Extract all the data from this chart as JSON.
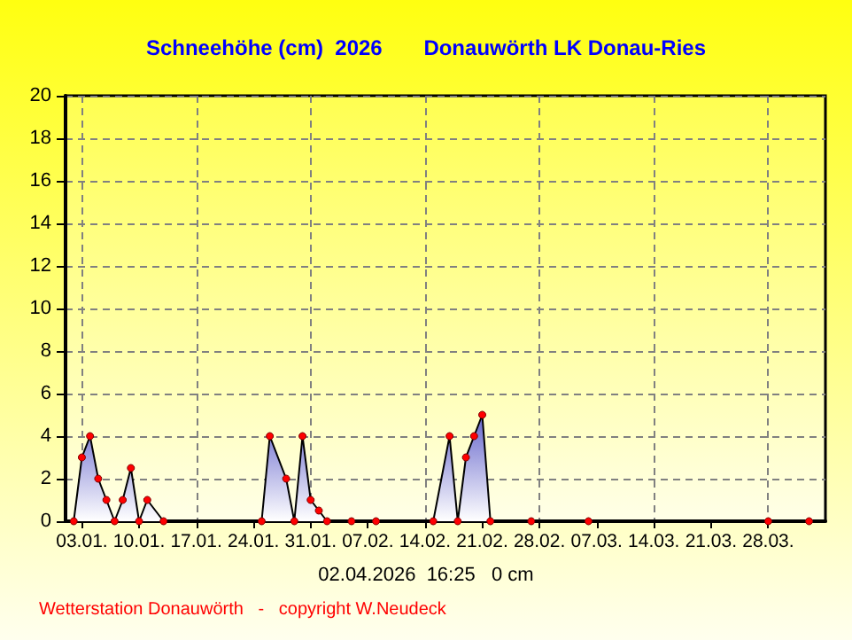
{
  "chart_data": {
    "type": "area",
    "title": "Schneehöhe (cm)  2026       Donauwörth LK Donau-Ries",
    "x": [
      "2026-01-02",
      "2026-01-03",
      "2026-01-04",
      "2026-01-05",
      "2026-01-06",
      "2026-01-07",
      "2026-01-08",
      "2026-01-09",
      "2026-01-10",
      "2026-01-11",
      "2026-01-13",
      "2026-01-25",
      "2026-01-26",
      "2026-01-28",
      "2026-01-29",
      "2026-01-30",
      "2026-01-31",
      "2026-02-01",
      "2026-02-02",
      "2026-02-05",
      "2026-02-08",
      "2026-02-15",
      "2026-02-17",
      "2026-02-18",
      "2026-02-19",
      "2026-02-20",
      "2026-02-21",
      "2026-02-22",
      "2026-02-27",
      "2026-03-06",
      "2026-03-28",
      "2026-04-02"
    ],
    "series": [
      {
        "color": "#6666cc",
        "values": [
          0,
          3,
          4,
          2,
          1,
          0,
          1,
          2.5,
          0,
          1,
          0,
          0,
          4,
          2,
          0,
          4,
          1,
          0.5,
          0,
          0,
          0,
          0,
          4,
          0,
          3,
          4,
          5,
          0,
          0,
          0,
          0,
          0
        ]
      }
    ],
    "xlim": [
      "2026-01-01",
      "2026-04-04"
    ],
    "xticks": [
      {
        "value": "2026-01-03",
        "label": "03.01."
      },
      {
        "value": "2026-01-10",
        "label": "10.01."
      },
      {
        "value": "2026-01-17",
        "label": "17.01."
      },
      {
        "value": "2026-01-24",
        "label": "24.01."
      },
      {
        "value": "2026-01-31",
        "label": "31.01."
      },
      {
        "value": "2026-02-07",
        "label": "07.02."
      },
      {
        "value": "2026-02-14",
        "label": "14.02."
      },
      {
        "value": "2026-02-21",
        "label": "21.02."
      },
      {
        "value": "2026-02-28",
        "label": "28.02."
      },
      {
        "value": "2026-03-07",
        "label": "07.03."
      },
      {
        "value": "2026-03-14",
        "label": "14.03."
      },
      {
        "value": "2026-03-21",
        "label": "21.03."
      },
      {
        "value": "2026-03-28",
        "label": "28.03."
      }
    ],
    "ylim": [
      0,
      20
    ],
    "yticks": [
      0,
      2,
      4,
      6,
      8,
      10,
      12,
      14,
      16,
      18,
      20
    ],
    "grid": true,
    "marker": "circle",
    "annotations": [
      "02.04.2026  16:25   0 cm",
      "Wetterstation Donauwörth   -   copyright W.Neudeck"
    ]
  }
}
